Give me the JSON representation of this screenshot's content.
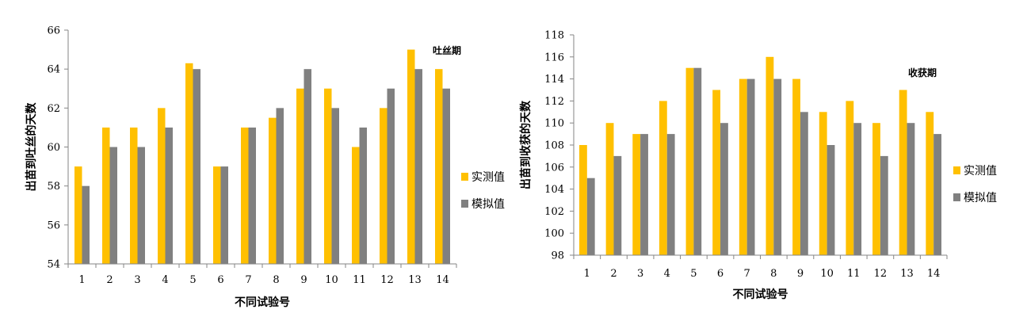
{
  "chart_data": [
    {
      "type": "bar",
      "annotation": "吐丝期",
      "xlabel": "不同试验号",
      "ylabel": "出苗到吐丝的天数",
      "categories": [
        "1",
        "2",
        "3",
        "4",
        "5",
        "6",
        "7",
        "8",
        "9",
        "10",
        "11",
        "12",
        "13",
        "14"
      ],
      "ylim": [
        54,
        66
      ],
      "yticks": [
        54,
        56,
        58,
        60,
        62,
        64,
        66
      ],
      "grid": false,
      "legend_position": "right",
      "series": [
        {
          "name": "实测值",
          "color": "#FFC000",
          "values": [
            59,
            61,
            61,
            62,
            64.3,
            59,
            61,
            61.5,
            63,
            63,
            60,
            62,
            65,
            64
          ]
        },
        {
          "name": "模拟值",
          "color": "#808080",
          "values": [
            58,
            60,
            60,
            61,
            64,
            59,
            61,
            62,
            64,
            62,
            61,
            63,
            64,
            63
          ]
        }
      ]
    },
    {
      "type": "bar",
      "annotation": "收获期",
      "xlabel": "不同试验号",
      "ylabel": "出苗到收获的天数",
      "categories": [
        "1",
        "2",
        "3",
        "4",
        "5",
        "6",
        "7",
        "8",
        "9",
        "10",
        "11",
        "12",
        "13",
        "14"
      ],
      "ylim": [
        98,
        118
      ],
      "yticks": [
        98,
        100,
        102,
        104,
        106,
        108,
        110,
        112,
        114,
        116,
        118
      ],
      "grid": false,
      "legend_position": "right",
      "series": [
        {
          "name": "实测值",
          "color": "#FFC000",
          "values": [
            108,
            110,
            109,
            112,
            115,
            113,
            114,
            116,
            114,
            111,
            112,
            110,
            113,
            111
          ]
        },
        {
          "name": "模拟值",
          "color": "#808080",
          "values": [
            105,
            107,
            109,
            109,
            115,
            110,
            114,
            114,
            111,
            108,
            110,
            107,
            110,
            109
          ]
        }
      ]
    }
  ]
}
